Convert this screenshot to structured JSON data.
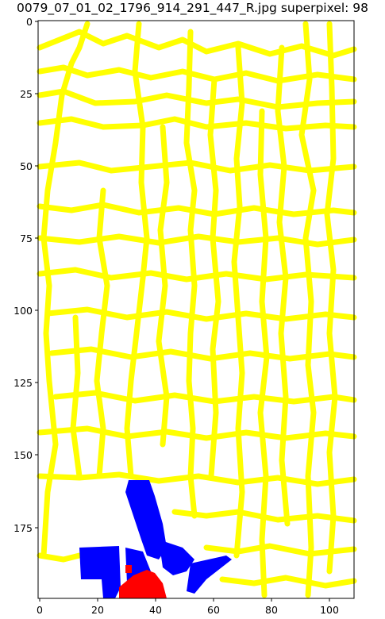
{
  "title": "0079_07_01_02_1796_914_291_447_R.jpg superpixel: 98",
  "axes": {
    "x_ticks": [
      "0",
      "20",
      "40",
      "60",
      "80",
      "100"
    ],
    "y_ticks": [
      "0",
      "25",
      "50",
      "75",
      "100",
      "125",
      "150",
      "175"
    ],
    "x_range": [
      0,
      109
    ],
    "y_range": [
      0,
      199
    ]
  },
  "colors": {
    "boundary": "#ffff00",
    "neighbor_region": "#0000ff",
    "selected_region": "#ff0000",
    "background": "#ffffff"
  }
}
